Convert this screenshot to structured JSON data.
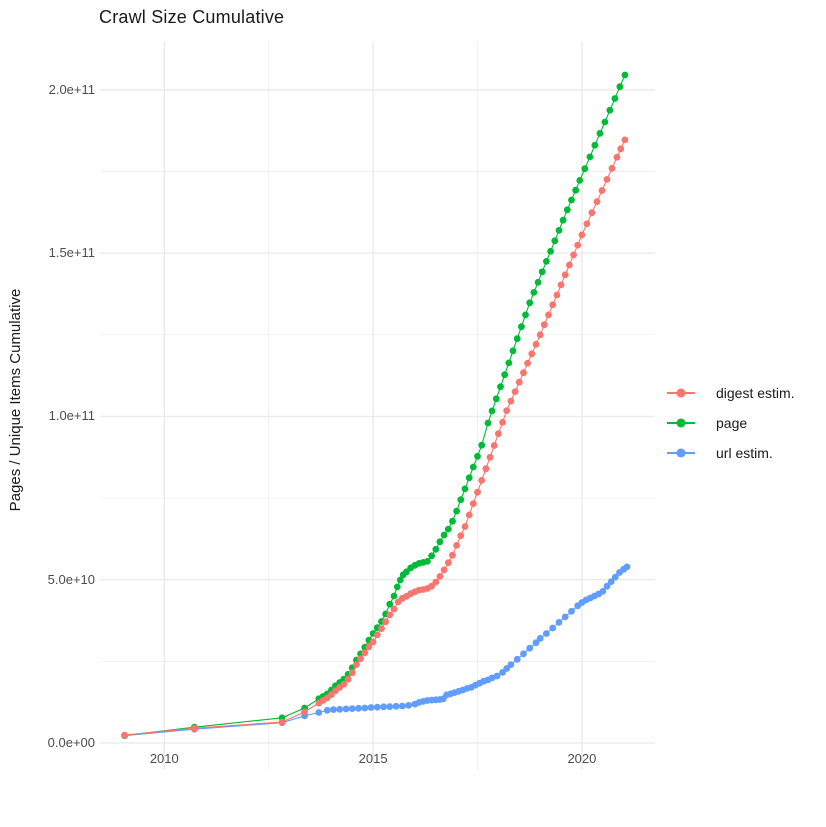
{
  "chart": {
    "title": "Crawl Size Cumulative",
    "y_axis_title": "Pages / Unique Items Cumulative"
  },
  "legend": {
    "items": [
      {
        "label": "digest estim.",
        "color": "#F8766D"
      },
      {
        "label": "page",
        "color": "#00BA38"
      },
      {
        "label": "url estim.",
        "color": "#619CFF"
      }
    ]
  },
  "colors": {
    "background": "#FFFFFF",
    "grid": "#EBEBEB",
    "axis_text": "#4D4D4D",
    "title_text": "#1A1A1A",
    "digest": "#F8766D",
    "page": "#00BA38",
    "url": "#619CFF"
  },
  "chart_data": {
    "type": "scatter",
    "title": "Crawl Size Cumulative",
    "xlabel": "",
    "ylabel": "Pages / Unique Items Cumulative",
    "grid": true,
    "legend_position": "right",
    "value_unit": "points stored as [year, pages/1e9]",
    "xlim": [
      2008.46,
      2021.75
    ],
    "ylim_e9": [
      -8.3,
      214.7
    ],
    "x_ticks": [
      {
        "value": 2010,
        "label": "2010"
      },
      {
        "value": 2015,
        "label": "2015"
      },
      {
        "value": 2020,
        "label": "2020"
      }
    ],
    "x_minor": [
      2012.5,
      2017.5
    ],
    "y_ticks_e9": [
      {
        "value": 0,
        "label": "0.0e+00"
      },
      {
        "value": 50,
        "label": "5.0e+10"
      },
      {
        "value": 100,
        "label": "1.0e+11"
      },
      {
        "value": 150,
        "label": "1.5e+11"
      },
      {
        "value": 200,
        "label": "2.0e+11"
      }
    ],
    "y_minor_e9": [
      25,
      75,
      125,
      175
    ],
    "series": [
      {
        "name": "url estim.",
        "color": "#619CFF",
        "points_e9": [
          [
            2009.05,
            2.2
          ],
          [
            2010.72,
            4.2
          ],
          [
            2012.82,
            6.2
          ],
          [
            2013.36,
            8.3
          ],
          [
            2013.7,
            9.3
          ],
          [
            2013.9,
            10.0
          ],
          [
            2014.05,
            10.2
          ],
          [
            2014.2,
            10.3
          ],
          [
            2014.35,
            10.4
          ],
          [
            2014.5,
            10.5
          ],
          [
            2014.65,
            10.6
          ],
          [
            2014.8,
            10.7
          ],
          [
            2014.95,
            10.85
          ],
          [
            2015.1,
            10.95
          ],
          [
            2015.25,
            11.05
          ],
          [
            2015.4,
            11.1
          ],
          [
            2015.55,
            11.2
          ],
          [
            2015.7,
            11.3
          ],
          [
            2015.85,
            11.5
          ],
          [
            2016.0,
            11.9
          ],
          [
            2016.1,
            12.4
          ],
          [
            2016.2,
            12.7
          ],
          [
            2016.3,
            13.0
          ],
          [
            2016.4,
            13.1
          ],
          [
            2016.5,
            13.2
          ],
          [
            2016.6,
            13.3
          ],
          [
            2016.68,
            13.5
          ],
          [
            2016.76,
            14.7
          ],
          [
            2016.85,
            15.0
          ],
          [
            2016.95,
            15.4
          ],
          [
            2017.05,
            15.8
          ],
          [
            2017.15,
            16.2
          ],
          [
            2017.25,
            16.7
          ],
          [
            2017.35,
            17.0
          ],
          [
            2017.45,
            17.7
          ],
          [
            2017.55,
            18.3
          ],
          [
            2017.65,
            18.9
          ],
          [
            2017.75,
            19.3
          ],
          [
            2017.85,
            19.9
          ],
          [
            2017.97,
            20.5
          ],
          [
            2018.1,
            21.6
          ],
          [
            2018.2,
            22.8
          ],
          [
            2018.3,
            24.0
          ],
          [
            2018.45,
            25.6
          ],
          [
            2018.6,
            27.3
          ],
          [
            2018.75,
            29.0
          ],
          [
            2018.9,
            30.7
          ],
          [
            2019.0,
            32.0
          ],
          [
            2019.15,
            33.5
          ],
          [
            2019.3,
            35.2
          ],
          [
            2019.45,
            36.9
          ],
          [
            2019.6,
            38.6
          ],
          [
            2019.75,
            40.3
          ],
          [
            2019.9,
            42.0
          ],
          [
            2020.0,
            43.0
          ],
          [
            2020.1,
            43.8
          ],
          [
            2020.2,
            44.4
          ],
          [
            2020.3,
            45.0
          ],
          [
            2020.4,
            45.6
          ],
          [
            2020.5,
            46.4
          ],
          [
            2020.6,
            48.0
          ],
          [
            2020.7,
            49.4
          ],
          [
            2020.8,
            50.8
          ],
          [
            2020.9,
            52.2
          ],
          [
            2021.0,
            53.2
          ],
          [
            2021.08,
            53.9
          ]
        ]
      },
      {
        "name": "page",
        "color": "#00BA38",
        "points_e9": [
          [
            2009.05,
            2.3
          ],
          [
            2010.72,
            4.8
          ],
          [
            2012.82,
            7.7
          ],
          [
            2013.36,
            10.7
          ],
          [
            2013.7,
            13.5
          ],
          [
            2013.8,
            14.2
          ],
          [
            2013.9,
            15.0
          ],
          [
            2014.0,
            16.2
          ],
          [
            2014.1,
            17.5
          ],
          [
            2014.2,
            18.5
          ],
          [
            2014.3,
            19.5
          ],
          [
            2014.4,
            21.0
          ],
          [
            2014.5,
            23.0
          ],
          [
            2014.6,
            25.4
          ],
          [
            2014.7,
            27.3
          ],
          [
            2014.8,
            29.3
          ],
          [
            2014.9,
            31.5
          ],
          [
            2015.0,
            33.5
          ],
          [
            2015.1,
            35.3
          ],
          [
            2015.2,
            37.2
          ],
          [
            2015.3,
            39.5
          ],
          [
            2015.4,
            42.5
          ],
          [
            2015.5,
            45.0
          ],
          [
            2015.58,
            47.8
          ],
          [
            2015.65,
            49.9
          ],
          [
            2015.72,
            51.5
          ],
          [
            2015.8,
            52.4
          ],
          [
            2015.9,
            53.6
          ],
          [
            2016.0,
            54.4
          ],
          [
            2016.1,
            55.0
          ],
          [
            2016.2,
            55.3
          ],
          [
            2016.3,
            55.6
          ],
          [
            2016.4,
            57.3
          ],
          [
            2016.5,
            59.3
          ],
          [
            2016.6,
            61.6
          ],
          [
            2016.7,
            63.7
          ],
          [
            2016.8,
            65.5
          ],
          [
            2016.9,
            67.9
          ],
          [
            2017.0,
            71.0
          ],
          [
            2017.1,
            74.5
          ],
          [
            2017.2,
            77.8
          ],
          [
            2017.3,
            81.2
          ],
          [
            2017.4,
            84.5
          ],
          [
            2017.5,
            87.8
          ],
          [
            2017.6,
            91.2
          ],
          [
            2017.75,
            98.0
          ],
          [
            2017.85,
            101.7
          ],
          [
            2017.95,
            105.4
          ],
          [
            2018.05,
            109.1
          ],
          [
            2018.15,
            112.8
          ],
          [
            2018.25,
            116.4
          ],
          [
            2018.35,
            120.1
          ],
          [
            2018.45,
            123.8
          ],
          [
            2018.55,
            127.5
          ],
          [
            2018.65,
            131.1
          ],
          [
            2018.75,
            134.8
          ],
          [
            2018.85,
            138.0
          ],
          [
            2018.95,
            141.1
          ],
          [
            2019.05,
            144.3
          ],
          [
            2019.15,
            147.5
          ],
          [
            2019.25,
            150.6
          ],
          [
            2019.35,
            153.8
          ],
          [
            2019.45,
            157.0
          ],
          [
            2019.55,
            160.1
          ],
          [
            2019.65,
            163.3
          ],
          [
            2019.75,
            166.3
          ],
          [
            2019.85,
            169.3
          ],
          [
            2019.95,
            172.3
          ],
          [
            2020.07,
            175.9
          ],
          [
            2020.19,
            179.5
          ],
          [
            2020.31,
            183.1
          ],
          [
            2020.43,
            186.7
          ],
          [
            2020.55,
            190.2
          ],
          [
            2020.67,
            193.8
          ],
          [
            2020.79,
            197.4
          ],
          [
            2020.91,
            201.0
          ],
          [
            2021.03,
            204.6
          ]
        ]
      },
      {
        "name": "digest estim.",
        "color": "#F8766D",
        "points_e9": [
          [
            2009.05,
            2.4
          ],
          [
            2010.72,
            4.5
          ],
          [
            2012.82,
            6.4
          ],
          [
            2013.36,
            9.5
          ],
          [
            2013.7,
            12.2
          ],
          [
            2013.8,
            13.0
          ],
          [
            2013.9,
            13.8
          ],
          [
            2014.0,
            14.8
          ],
          [
            2014.1,
            16.0
          ],
          [
            2014.2,
            17.0
          ],
          [
            2014.3,
            18.0
          ],
          [
            2014.4,
            19.5
          ],
          [
            2014.5,
            21.5
          ],
          [
            2014.6,
            24.0
          ],
          [
            2014.7,
            25.8
          ],
          [
            2014.8,
            27.6
          ],
          [
            2014.9,
            29.4
          ],
          [
            2015.0,
            30.9
          ],
          [
            2015.1,
            33.1
          ],
          [
            2015.2,
            35.0
          ],
          [
            2015.3,
            37.1
          ],
          [
            2015.4,
            39.2
          ],
          [
            2015.5,
            41.0
          ],
          [
            2015.6,
            43.2
          ],
          [
            2015.7,
            44.3
          ],
          [
            2015.8,
            44.9
          ],
          [
            2015.9,
            45.7
          ],
          [
            2016.0,
            46.3
          ],
          [
            2016.1,
            46.8
          ],
          [
            2016.2,
            47.0
          ],
          [
            2016.3,
            47.3
          ],
          [
            2016.4,
            48.0
          ],
          [
            2016.5,
            49.3
          ],
          [
            2016.6,
            51.0
          ],
          [
            2016.7,
            53.0
          ],
          [
            2016.8,
            55.2
          ],
          [
            2016.9,
            57.5
          ],
          [
            2017.0,
            60.5
          ],
          [
            2017.1,
            63.5
          ],
          [
            2017.2,
            66.3
          ],
          [
            2017.3,
            69.8
          ],
          [
            2017.4,
            73.3
          ],
          [
            2017.5,
            76.8
          ],
          [
            2017.6,
            80.4
          ],
          [
            2017.7,
            84.0
          ],
          [
            2017.8,
            87.5
          ],
          [
            2017.9,
            91.1
          ],
          [
            2018.0,
            94.7
          ],
          [
            2018.1,
            98.2
          ],
          [
            2018.2,
            101.8
          ],
          [
            2018.3,
            104.7
          ],
          [
            2018.4,
            107.6
          ],
          [
            2018.5,
            110.5
          ],
          [
            2018.6,
            113.4
          ],
          [
            2018.7,
            116.3
          ],
          [
            2018.8,
            119.2
          ],
          [
            2018.9,
            122.1
          ],
          [
            2019.0,
            125.0
          ],
          [
            2019.1,
            128.1
          ],
          [
            2019.2,
            131.1
          ],
          [
            2019.3,
            134.2
          ],
          [
            2019.4,
            137.2
          ],
          [
            2019.5,
            140.3
          ],
          [
            2019.6,
            143.4
          ],
          [
            2019.7,
            146.4
          ],
          [
            2019.8,
            149.5
          ],
          [
            2019.9,
            152.5
          ],
          [
            2020.0,
            155.6
          ],
          [
            2020.12,
            159.0
          ],
          [
            2020.24,
            162.4
          ],
          [
            2020.36,
            165.8
          ],
          [
            2020.48,
            169.2
          ],
          [
            2020.6,
            172.6
          ],
          [
            2020.72,
            176.0
          ],
          [
            2020.84,
            179.4
          ],
          [
            2020.93,
            182.0
          ],
          [
            2021.03,
            184.7
          ]
        ]
      }
    ]
  }
}
